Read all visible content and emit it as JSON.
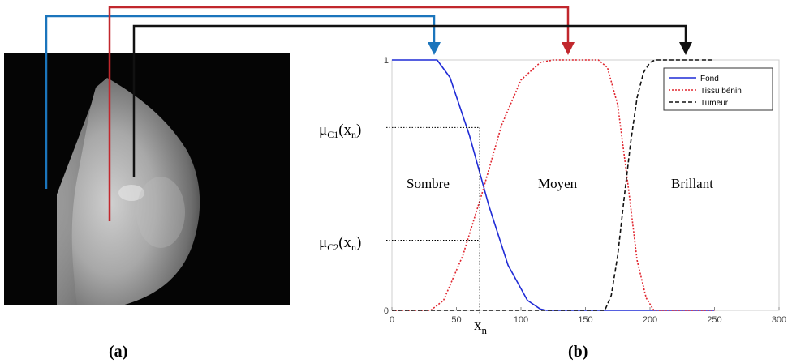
{
  "panel_a": {
    "caption": "(a)"
  },
  "panel_b": {
    "caption": "(b)"
  },
  "chart_data": {
    "type": "line",
    "x_ticks": [
      0,
      50,
      100,
      150,
      200,
      250,
      300
    ],
    "y_ticks": [
      0,
      1
    ],
    "xlim": [
      0,
      300
    ],
    "ylim": [
      0,
      1
    ],
    "legend_position": "top-right",
    "series": [
      {
        "name": "Fond",
        "color": "#1f2bd6",
        "style": "solid",
        "x": [
          0,
          35,
          45,
          60,
          75,
          90,
          105,
          115,
          120,
          250
        ],
        "y": [
          1,
          1,
          0.93,
          0.7,
          0.42,
          0.18,
          0.04,
          0.005,
          0,
          0
        ]
      },
      {
        "name": "Tissu bénin",
        "color": "#e0262f",
        "style": "dotted",
        "x": [
          0,
          30,
          40,
          55,
          70,
          85,
          100,
          115,
          125,
          130,
          160,
          167,
          175,
          183,
          190,
          197,
          203,
          250
        ],
        "y": [
          0,
          0,
          0.04,
          0.22,
          0.47,
          0.74,
          0.92,
          0.99,
          1,
          1,
          1,
          0.97,
          0.82,
          0.5,
          0.2,
          0.05,
          0,
          0
        ]
      },
      {
        "name": "Tumeur",
        "color": "#111111",
        "style": "dashed",
        "x": [
          0,
          165,
          170,
          175,
          180,
          185,
          190,
          195,
          200,
          204,
          250
        ],
        "y": [
          0,
          0,
          0.06,
          0.22,
          0.45,
          0.67,
          0.85,
          0.95,
          0.99,
          1,
          1
        ]
      }
    ],
    "regions": [
      "Sombre",
      "Moyen",
      "Brillant"
    ],
    "mu_labels": {
      "c1_main": "μ",
      "c1_sub": "C1",
      "c1_arg": "(x",
      "c1_argsub": "n",
      "c1_close": ")",
      "c2_main": "μ",
      "c2_sub": "C2",
      "c2_arg": "(x",
      "c2_argsub": "n",
      "c2_close": ")"
    },
    "xn_label": {
      "main": "x",
      "sub": "n"
    },
    "xn_value": 68,
    "mu_c1_value": 0.73,
    "mu_c2_value": 0.28
  },
  "colors": {
    "arrow_blue": "#1b75bc",
    "arrow_red": "#c1272d",
    "arrow_black": "#111111"
  }
}
